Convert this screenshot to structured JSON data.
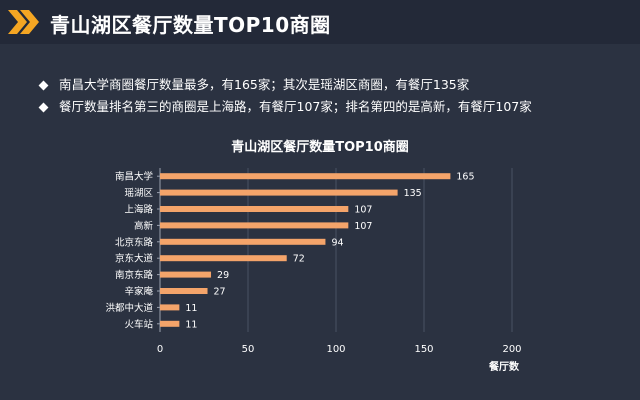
{
  "header": {
    "title": "青山湖区餐厅数量TOP10商圈",
    "accent_color": "#f5a623",
    "icon": "double-chevron-right-icon"
  },
  "bullets": [
    "南昌大学商圈餐厅数量最多，有165家；其次是瑶湖区商圈，有餐厅135家",
    "餐厅数量排名第三的商圈是上海路，有餐厅107家；排名第四的是高新，有餐厅107家"
  ],
  "chart_data": {
    "type": "bar",
    "orientation": "horizontal",
    "title": "青山湖区餐厅数量TOP10商圈",
    "xlabel": "餐厅数",
    "ylabel": "",
    "categories": [
      "南昌大学",
      "瑶湖区",
      "上海路",
      "高新",
      "北京东路",
      "京东大道",
      "南京东路",
      "辛家庵",
      "洪都中大道",
      "火车站"
    ],
    "values": [
      165,
      135,
      107,
      107,
      94,
      72,
      29,
      27,
      11,
      11
    ],
    "xlim": [
      0,
      200
    ],
    "xticks": [
      0,
      50,
      100,
      150,
      200
    ],
    "bar_color": "#f4a46a",
    "grid": true
  }
}
